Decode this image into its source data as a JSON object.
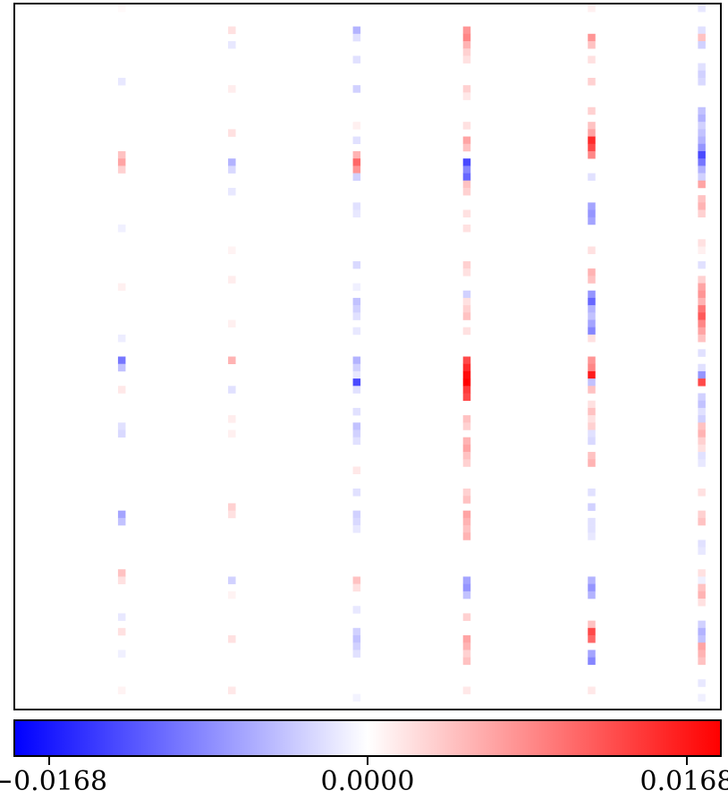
{
  "chart_data": {
    "type": "heatmap",
    "title": "",
    "xlabel": "",
    "ylabel": "",
    "grid": false,
    "colormap": {
      "name": "bwr",
      "low": "#0000ff",
      "mid": "#ffffff",
      "high": "#ff0000"
    },
    "value_range": [
      -0.0168,
      0.0168
    ],
    "colorbar": {
      "orientation": "horizontal",
      "placement": "bottom",
      "ticks": [
        {
          "value": -0.0168,
          "label": "−0.0168"
        },
        {
          "value": 0.0,
          "label": "0.0000"
        },
        {
          "value": 0.0168,
          "label": "0.0168"
        }
      ]
    },
    "n_rows": 96,
    "n_cols": 96,
    "active_columns": [
      {
        "col": 14,
        "rows": [
          [
            0,
            0.0003
          ],
          [
            10,
            -0.0015
          ],
          [
            20,
            0.004
          ],
          [
            21,
            0.006
          ],
          [
            22,
            0.003
          ],
          [
            30,
            -0.001
          ],
          [
            38,
            0.001
          ],
          [
            45,
            -0.0012
          ],
          [
            48,
            -0.009
          ],
          [
            49,
            -0.004
          ],
          [
            52,
            0.0015
          ],
          [
            57,
            -0.002
          ],
          [
            58,
            -0.0025
          ],
          [
            69,
            -0.006
          ],
          [
            70,
            -0.004
          ],
          [
            77,
            0.004
          ],
          [
            78,
            0.002
          ],
          [
            83,
            -0.0015
          ],
          [
            85,
            0.002
          ],
          [
            88,
            -0.001
          ],
          [
            93,
            0.0008
          ]
        ]
      },
      {
        "col": 29,
        "rows": [
          [
            3,
            0.002
          ],
          [
            5,
            -0.0015
          ],
          [
            11,
            0.0012
          ],
          [
            17,
            0.002
          ],
          [
            21,
            -0.005
          ],
          [
            22,
            -0.0025
          ],
          [
            25,
            -0.0015
          ],
          [
            33,
            0.0008
          ],
          [
            37,
            0.0012
          ],
          [
            43,
            0.001
          ],
          [
            48,
            0.005
          ],
          [
            52,
            -0.002
          ],
          [
            56,
            0.0012
          ],
          [
            58,
            0.001
          ],
          [
            68,
            0.003
          ],
          [
            69,
            0.002
          ],
          [
            78,
            -0.003
          ],
          [
            80,
            0.0008
          ],
          [
            86,
            0.002
          ],
          [
            93,
            0.0015
          ]
        ]
      },
      {
        "col": 46,
        "rows": [
          [
            3,
            -0.005
          ],
          [
            4,
            -0.002
          ],
          [
            7,
            -0.002
          ],
          [
            11,
            -0.003
          ],
          [
            16,
            0.001
          ],
          [
            18,
            -0.002
          ],
          [
            20,
            0.005
          ],
          [
            21,
            0.01
          ],
          [
            22,
            0.007
          ],
          [
            23,
            -0.003
          ],
          [
            27,
            -0.002
          ],
          [
            28,
            -0.0015
          ],
          [
            35,
            -0.0025
          ],
          [
            38,
            -0.001
          ],
          [
            40,
            -0.004
          ],
          [
            41,
            -0.003
          ],
          [
            42,
            -0.002
          ],
          [
            44,
            -0.0015
          ],
          [
            48,
            -0.005
          ],
          [
            49,
            -0.003
          ],
          [
            50,
            -0.0015
          ],
          [
            51,
            -0.012
          ],
          [
            52,
            -0.002
          ],
          [
            55,
            -0.002
          ],
          [
            57,
            -0.004
          ],
          [
            58,
            -0.003
          ],
          [
            59,
            -0.002
          ],
          [
            63,
            0.0015
          ],
          [
            66,
            -0.002
          ],
          [
            69,
            -0.003
          ],
          [
            70,
            -0.0025
          ],
          [
            71,
            -0.0015
          ],
          [
            78,
            0.004
          ],
          [
            79,
            0.002
          ],
          [
            82,
            -0.0015
          ],
          [
            85,
            -0.003
          ],
          [
            86,
            -0.004
          ],
          [
            87,
            -0.003
          ],
          [
            88,
            -0.002
          ],
          [
            94,
            -0.0008
          ]
        ]
      },
      {
        "col": 61,
        "rows": [
          [
            3,
            0.007
          ],
          [
            4,
            0.008
          ],
          [
            5,
            0.005
          ],
          [
            6,
            0.003
          ],
          [
            7,
            0.002
          ],
          [
            11,
            0.003
          ],
          [
            12,
            0.0015
          ],
          [
            16,
            0.002
          ],
          [
            18,
            0.006
          ],
          [
            19,
            0.004
          ],
          [
            21,
            -0.012
          ],
          [
            22,
            -0.008
          ],
          [
            23,
            -0.01
          ],
          [
            24,
            0.004
          ],
          [
            25,
            0.003
          ],
          [
            28,
            0.002
          ],
          [
            30,
            0.002
          ],
          [
            35,
            0.003
          ],
          [
            36,
            0.002
          ],
          [
            39,
            -0.003
          ],
          [
            40,
            0.002
          ],
          [
            41,
            0.003
          ],
          [
            42,
            0.004
          ],
          [
            44,
            0.002
          ],
          [
            48,
            0.012
          ],
          [
            49,
            0.014
          ],
          [
            50,
            0.016
          ],
          [
            51,
            0.018
          ],
          [
            52,
            0.013
          ],
          [
            53,
            0.012
          ],
          [
            56,
            0.004
          ],
          [
            57,
            0.003
          ],
          [
            59,
            0.005
          ],
          [
            60,
            0.006
          ],
          [
            61,
            0.004
          ],
          [
            62,
            0.003
          ],
          [
            66,
            0.003
          ],
          [
            67,
            0.004
          ],
          [
            69,
            0.006
          ],
          [
            70,
            0.005
          ],
          [
            71,
            0.004
          ],
          [
            72,
            0.005
          ],
          [
            78,
            -0.006
          ],
          [
            79,
            -0.007
          ],
          [
            80,
            -0.004
          ],
          [
            83,
            0.003
          ],
          [
            86,
            0.006
          ],
          [
            87,
            0.005
          ],
          [
            88,
            0.003
          ],
          [
            89,
            0.004
          ],
          [
            93,
            0.0015
          ]
        ]
      },
      {
        "col": 78,
        "rows": [
          [
            0,
            0.001
          ],
          [
            4,
            0.007
          ],
          [
            5,
            0.004
          ],
          [
            7,
            0.002
          ],
          [
            10,
            0.003
          ],
          [
            14,
            0.003
          ],
          [
            16,
            0.004
          ],
          [
            17,
            0.006
          ],
          [
            18,
            0.014
          ],
          [
            19,
            0.012
          ],
          [
            20,
            0.008
          ],
          [
            23,
            -0.002
          ],
          [
            27,
            -0.006
          ],
          [
            28,
            -0.007
          ],
          [
            29,
            -0.006
          ],
          [
            33,
            0.002
          ],
          [
            36,
            0.005
          ],
          [
            37,
            0.004
          ],
          [
            39,
            -0.007
          ],
          [
            40,
            -0.01
          ],
          [
            41,
            -0.005
          ],
          [
            42,
            -0.004
          ],
          [
            43,
            -0.006
          ],
          [
            44,
            -0.008
          ],
          [
            45,
            0.002
          ],
          [
            48,
            0.007
          ],
          [
            49,
            0.008
          ],
          [
            50,
            0.015
          ],
          [
            51,
            -0.004
          ],
          [
            52,
            0.004
          ],
          [
            54,
            0.002
          ],
          [
            55,
            0.004
          ],
          [
            56,
            0.002
          ],
          [
            57,
            0.003
          ],
          [
            58,
            -0.002
          ],
          [
            59,
            -0.0025
          ],
          [
            61,
            0.004
          ],
          [
            62,
            0.005
          ],
          [
            66,
            -0.002
          ],
          [
            68,
            -0.003
          ],
          [
            70,
            -0.002
          ],
          [
            71,
            -0.002
          ],
          [
            72,
            -0.0015
          ],
          [
            78,
            -0.005
          ],
          [
            79,
            -0.007
          ],
          [
            80,
            -0.005
          ],
          [
            84,
            0.004
          ],
          [
            85,
            0.012
          ],
          [
            86,
            0.01
          ],
          [
            88,
            -0.006
          ],
          [
            89,
            -0.008
          ],
          [
            93,
            0.0015
          ]
        ]
      },
      {
        "col": 93,
        "rows": [
          [
            0,
            -0.0015
          ],
          [
            3,
            -0.002
          ],
          [
            4,
            0.004
          ],
          [
            5,
            -0.003
          ],
          [
            8,
            -0.002
          ],
          [
            9,
            -0.003
          ],
          [
            10,
            -0.0025
          ],
          [
            14,
            -0.004
          ],
          [
            15,
            -0.005
          ],
          [
            16,
            -0.003
          ],
          [
            17,
            -0.004
          ],
          [
            18,
            -0.005
          ],
          [
            19,
            -0.007
          ],
          [
            20,
            -0.012
          ],
          [
            21,
            -0.009
          ],
          [
            22,
            -0.005
          ],
          [
            23,
            -0.003
          ],
          [
            24,
            0.006
          ],
          [
            26,
            0.004
          ],
          [
            27,
            0.005
          ],
          [
            28,
            0.003
          ],
          [
            32,
            0.002
          ],
          [
            33,
            0.001
          ],
          [
            35,
            -0.002
          ],
          [
            37,
            0.003
          ],
          [
            38,
            0.006
          ],
          [
            39,
            0.007
          ],
          [
            40,
            0.005
          ],
          [
            41,
            0.009
          ],
          [
            42,
            0.011
          ],
          [
            43,
            0.008
          ],
          [
            44,
            0.006
          ],
          [
            45,
            0.004
          ],
          [
            47,
            -0.002
          ],
          [
            49,
            -0.002
          ],
          [
            50,
            -0.007
          ],
          [
            51,
            0.012
          ],
          [
            53,
            -0.003
          ],
          [
            54,
            -0.004
          ],
          [
            55,
            -0.002
          ],
          [
            56,
            -0.003
          ],
          [
            57,
            0.004
          ],
          [
            58,
            0.005
          ],
          [
            59,
            0.003
          ],
          [
            60,
            0.002
          ],
          [
            61,
            -0.002
          ],
          [
            62,
            -0.0015
          ],
          [
            66,
            0.002
          ],
          [
            69,
            0.003
          ],
          [
            70,
            0.004
          ],
          [
            73,
            -0.002
          ],
          [
            74,
            -0.0015
          ],
          [
            77,
            0.002
          ],
          [
            78,
            -0.001
          ],
          [
            79,
            0.004
          ],
          [
            80,
            0.005
          ],
          [
            81,
            0.002
          ],
          [
            84,
            -0.003
          ],
          [
            85,
            -0.005
          ],
          [
            86,
            -0.004
          ],
          [
            87,
            0.006
          ],
          [
            88,
            0.005
          ],
          [
            89,
            0.004
          ],
          [
            92,
            -0.0015
          ],
          [
            94,
            -0.001
          ]
        ]
      }
    ]
  }
}
